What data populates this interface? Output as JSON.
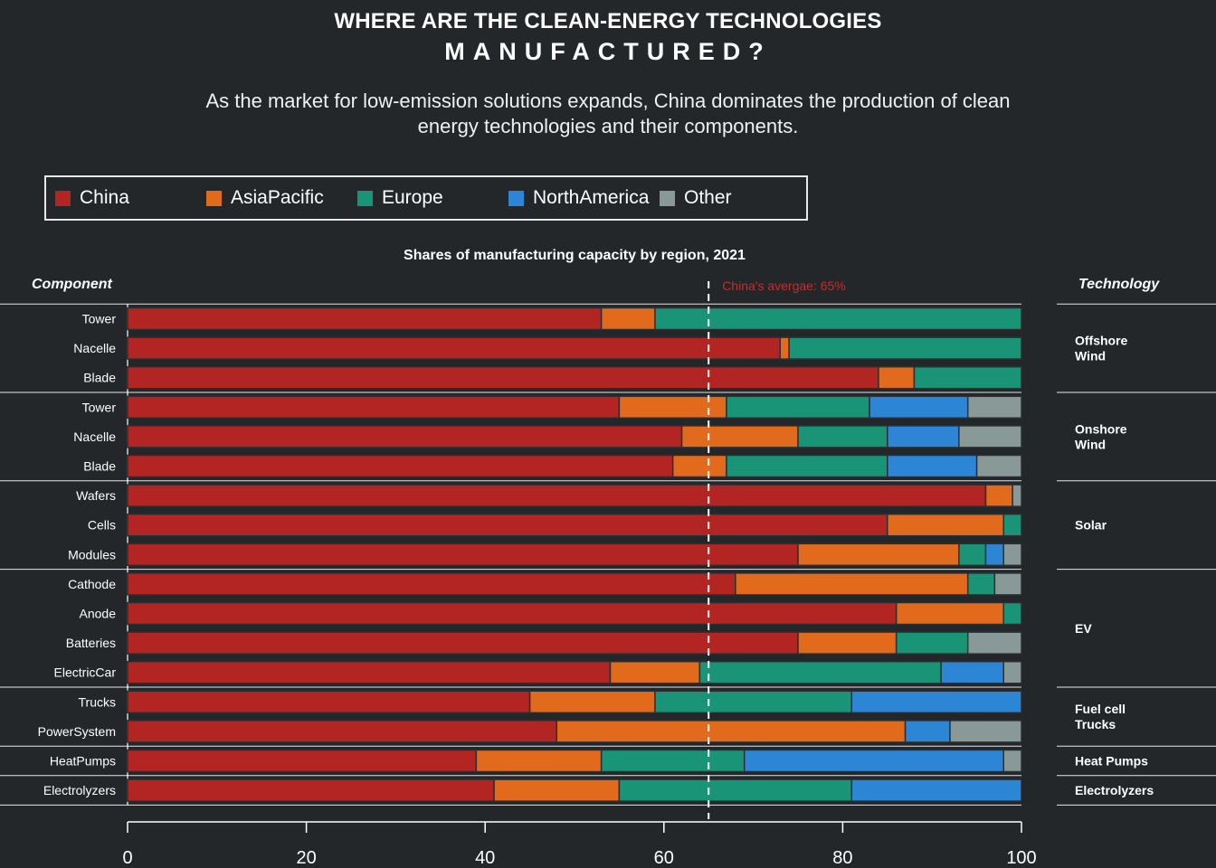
{
  "title_line1": "WHERE ARE THE CLEAN-ENERGY TECHNOLOGIES",
  "title_line2": "MANUFACTURED?",
  "subtitle": "As the market for low-emission solutions expands, China dominates the production of clean energy technologies and their components.",
  "legend": [
    {
      "name": "China",
      "color": "#b22523"
    },
    {
      "name": "AsiaPacific",
      "color": "#e16a1d"
    },
    {
      "name": "Europe",
      "color": "#1a9476"
    },
    {
      "name": "NorthAmerica",
      "color": "#2d85d6"
    },
    {
      "name": "Other",
      "color": "#889998"
    }
  ],
  "chart_title": "Shares of manufacturing capacity by region, 2021",
  "component_header": "Component",
  "technology_header": "Technology",
  "chart_data": {
    "type": "bar",
    "orientation": "horizontal",
    "stacked": true,
    "title": "Shares of manufacturing capacity by region, 2021",
    "xlim": [
      0,
      100
    ],
    "x_ticks": [
      "0",
      "20",
      "40",
      "60",
      "80",
      "100"
    ],
    "reference_line": {
      "value": 65,
      "label": "China's avergae: 65%",
      "color": "#c0302c"
    },
    "categories": [
      "Tower",
      "Nacelle",
      "Blade",
      "Tower",
      "Nacelle",
      "Blade",
      "Wafers",
      "Cells",
      "Modules",
      "Cathode",
      "Anode",
      "Batteries",
      "ElectricCar",
      "Trucks",
      "PowerSystem",
      "HeatPumps",
      "Electrolyzers"
    ],
    "series": [
      {
        "name": "China",
        "values": [
          53,
          73,
          84,
          55,
          62,
          61,
          96,
          85,
          75,
          68,
          86,
          75,
          54,
          45,
          48,
          39,
          41
        ]
      },
      {
        "name": "AsiaPacific",
        "values": [
          6,
          1,
          4,
          12,
          13,
          6,
          3,
          13,
          18,
          26,
          12,
          11,
          10,
          14,
          39,
          14,
          14
        ]
      },
      {
        "name": "Europe",
        "values": [
          41,
          26,
          12,
          16,
          10,
          18,
          0,
          2,
          3,
          3,
          2,
          8,
          27,
          22,
          0,
          16,
          26
        ]
      },
      {
        "name": "NorthAmerica",
        "values": [
          0,
          0,
          0,
          11,
          8,
          10,
          0,
          0,
          2,
          0,
          0,
          0,
          7,
          19,
          5,
          29,
          19
        ]
      },
      {
        "name": "Other",
        "values": [
          0,
          0,
          0,
          6,
          7,
          5,
          1,
          0,
          2,
          3,
          0,
          6,
          2,
          0,
          8,
          2,
          0
        ]
      }
    ],
    "groups": [
      {
        "technology": "Offshore Wind",
        "lines": [
          "Offshore",
          "Wind"
        ],
        "rows": 3
      },
      {
        "technology": "Onshore Wind",
        "lines": [
          "Onshore",
          "Wind"
        ],
        "rows": 3
      },
      {
        "technology": "Solar",
        "lines": [
          "Solar"
        ],
        "rows": 3
      },
      {
        "technology": "EV",
        "lines": [
          "EV"
        ],
        "rows": 4
      },
      {
        "technology": "Fuel cell Trucks",
        "lines": [
          "Fuel cell",
          "Trucks"
        ],
        "rows": 2
      },
      {
        "technology": "Heat Pumps",
        "lines": [
          "Heat Pumps"
        ],
        "rows": 1
      },
      {
        "technology": "Electrolyzers",
        "lines": [
          "Electrolyzers"
        ],
        "rows": 1
      }
    ]
  }
}
